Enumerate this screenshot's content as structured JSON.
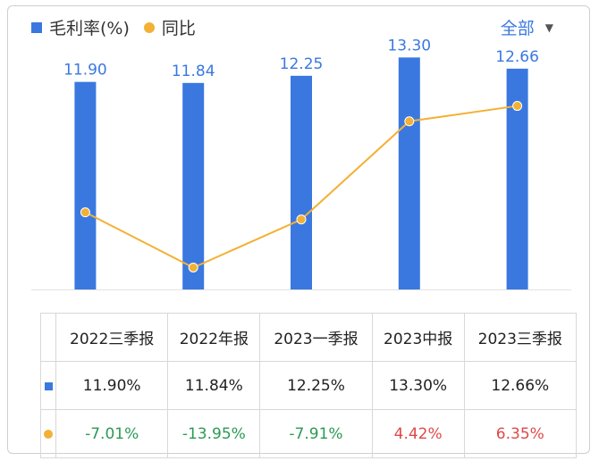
{
  "legend": {
    "bar_label": "毛利率(%)",
    "line_label": "同比"
  },
  "filter": {
    "label": "全部"
  },
  "chart_data": {
    "type": "bar",
    "categories": [
      "2022三季报",
      "2022年报",
      "2023一季报",
      "2023中报",
      "2023三季报"
    ],
    "series": [
      {
        "name": "毛利率(%)",
        "type": "bar",
        "values": [
          11.9,
          11.84,
          12.25,
          13.3,
          12.66
        ],
        "labels": [
          "11.90",
          "11.84",
          "12.25",
          "13.30",
          "12.66"
        ],
        "color": "#3a78e0"
      },
      {
        "name": "同比",
        "type": "line",
        "values": [
          -7.01,
          -13.95,
          -7.91,
          4.42,
          6.35
        ],
        "color": "#f2b134"
      }
    ],
    "grid": false
  },
  "table": {
    "headers": [
      "2022三季报",
      "2022年报",
      "2023一季报",
      "2023中报",
      "2023三季报"
    ],
    "row_margin": [
      "11.90%",
      "11.84%",
      "12.25%",
      "13.30%",
      "12.66%"
    ],
    "row_yoy": [
      "-7.01%",
      "-13.95%",
      "-7.91%",
      "4.42%",
      "6.35%"
    ],
    "colors": {
      "negative": "#2a9a55",
      "positive": "#e04848"
    }
  }
}
